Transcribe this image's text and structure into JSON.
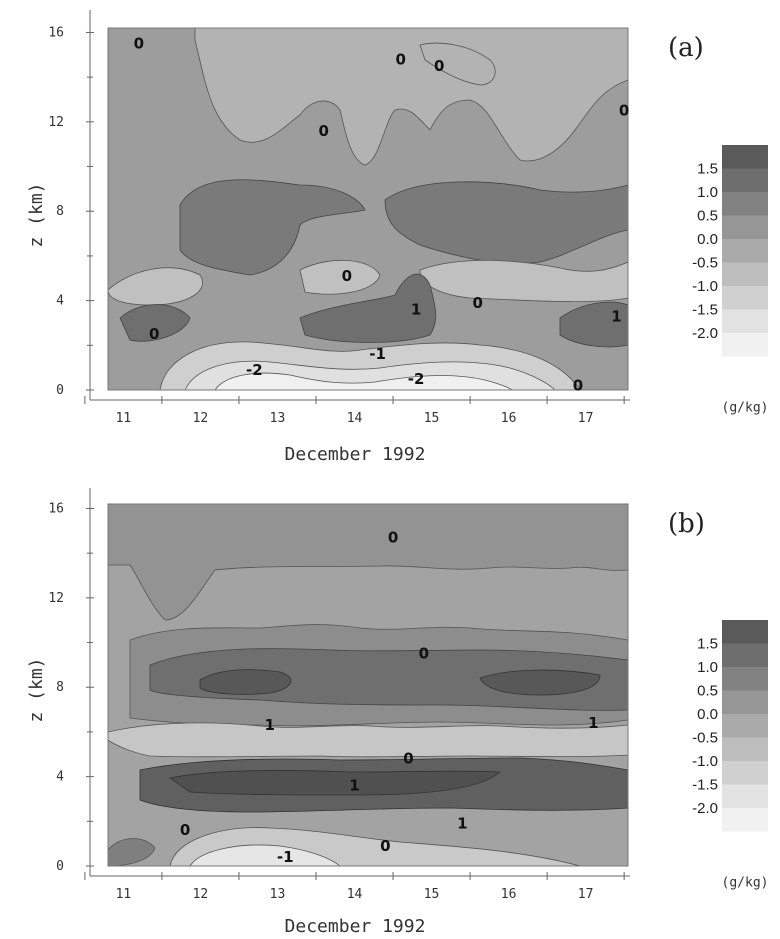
{
  "chart_data": [
    {
      "type": "heatmap",
      "panel_label": "(a)",
      "xlabel": "December 1992",
      "ylabel": "z (km)",
      "x_ticks": [
        "11",
        "12",
        "13",
        "14",
        "15",
        "16",
        "17"
      ],
      "y_ticks": [
        "0",
        "4",
        "8",
        "12",
        "16"
      ],
      "xlim": [
        10.8,
        17.55
      ],
      "ylim": [
        0,
        16.2
      ],
      "colorbar": {
        "levels": [
          "1.5",
          "1.0",
          "0.5",
          "0.0",
          "-0.5",
          "-1.0",
          "-1.5",
          "-2.0"
        ],
        "unit": "(g/kg)"
      },
      "contour_labels": [
        {
          "text": "0",
          "x": 11.2,
          "z": 15.5
        },
        {
          "text": "0",
          "x": 14.6,
          "z": 14.8
        },
        {
          "text": "0",
          "x": 15.1,
          "z": 14.5
        },
        {
          "text": "0",
          "x": 13.6,
          "z": 11.6
        },
        {
          "text": "0",
          "x": 17.5,
          "z": 12.5
        },
        {
          "text": "0",
          "x": 13.9,
          "z": 5.1
        },
        {
          "text": "0",
          "x": 15.6,
          "z": 3.9
        },
        {
          "text": "0",
          "x": 11.4,
          "z": 2.5
        },
        {
          "text": "1",
          "x": 14.8,
          "z": 3.6
        },
        {
          "text": "1",
          "x": 17.4,
          "z": 3.3
        },
        {
          "text": "-1",
          "x": 14.3,
          "z": 1.6
        },
        {
          "text": "-2",
          "x": 12.7,
          "z": 0.9
        },
        {
          "text": "-2",
          "x": 14.8,
          "z": 0.5
        },
        {
          "text": "0",
          "x": 16.9,
          "z": 0.2
        }
      ]
    },
    {
      "type": "heatmap",
      "panel_label": "(b)",
      "xlabel": "December 1992",
      "ylabel": "z (km)",
      "x_ticks": [
        "11",
        "12",
        "13",
        "14",
        "15",
        "16",
        "17"
      ],
      "y_ticks": [
        "0",
        "4",
        "8",
        "12",
        "16"
      ],
      "xlim": [
        10.8,
        17.55
      ],
      "ylim": [
        0,
        16.2
      ],
      "colorbar": {
        "levels": [
          "1.5",
          "1.0",
          "0.5",
          "0.0",
          "-0.5",
          "-1.0",
          "-1.5",
          "-2.0"
        ],
        "unit": "(g/kg)"
      },
      "contour_labels": [
        {
          "text": "0",
          "x": 14.5,
          "z": 14.7
        },
        {
          "text": "0",
          "x": 14.9,
          "z": 9.5
        },
        {
          "text": "1",
          "x": 12.9,
          "z": 6.3
        },
        {
          "text": "1",
          "x": 17.1,
          "z": 6.4
        },
        {
          "text": "0",
          "x": 14.7,
          "z": 4.8
        },
        {
          "text": "1",
          "x": 14.0,
          "z": 3.6
        },
        {
          "text": "1",
          "x": 15.4,
          "z": 1.9
        },
        {
          "text": "0",
          "x": 11.8,
          "z": 1.6
        },
        {
          "text": "0",
          "x": 14.4,
          "z": 0.9
        },
        {
          "text": "-1",
          "x": 13.1,
          "z": 0.4
        }
      ]
    }
  ]
}
